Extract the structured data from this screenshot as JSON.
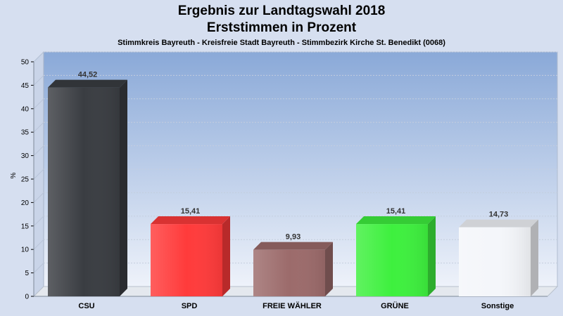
{
  "header": {
    "title_line1": "Ergebnis zur Landtagswahl 2018",
    "title_line2": "Erststimmen in Prozent",
    "subtitle": "Stimmkreis Bayreuth - Kreisfreie Stadt Bayreuth - Stimmbezirk Kirche St. Benedikt (0068)"
  },
  "chart_data": {
    "type": "bar",
    "title": "Ergebnis zur Landtagswahl 2018 Erststimmen in Prozent",
    "subtitle": "Stimmkreis Bayreuth - Kreisfreie Stadt Bayreuth - Stimmbezirk Kirche St. Benedikt (0068)",
    "categories": [
      "CSU",
      "SPD",
      "FREIE WÄHLER",
      "GRÜNE",
      "Sonstige"
    ],
    "values": [
      44.52,
      15.41,
      9.93,
      15.41,
      14.73
    ],
    "value_labels": [
      "44,52",
      "15,41",
      "9,93",
      "15,41",
      "14,73"
    ],
    "colors": [
      "#3a3d42",
      "#ff3b3b",
      "#9c6b6b",
      "#3ef03e",
      "#f4f6fa"
    ],
    "xlabel": "",
    "ylabel": "%",
    "ylim": [
      0,
      50
    ],
    "yticks": [
      0,
      5,
      10,
      15,
      20,
      25,
      30,
      35,
      40,
      45,
      50
    ],
    "grid": true,
    "legend": "none"
  }
}
